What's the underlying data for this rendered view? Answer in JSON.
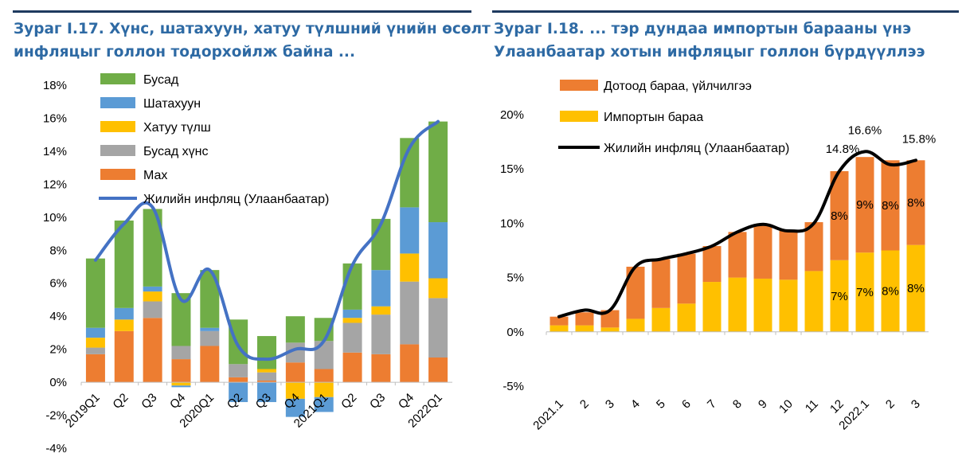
{
  "panels": [
    {
      "title_line1": "Зураг I.17. Хүнс, шатахуун, хатуу түлшний үнийн өсөлт",
      "title_line2": "инфляцыг голлон тодорхойлж байна ...",
      "legend": [
        {
          "label": "Бусад",
          "color": "#70ad47",
          "kind": "box"
        },
        {
          "label": "Шатахуун",
          "color": "#5b9bd5",
          "kind": "box"
        },
        {
          "label": "Хатуу түлш",
          "color": "#ffc000",
          "kind": "box"
        },
        {
          "label": "Бусад хүнс",
          "color": "#a5a5a5",
          "kind": "box"
        },
        {
          "label": "Мах",
          "color": "#ed7d31",
          "kind": "box"
        },
        {
          "label": "Жилийн инфляц (Улаанбаатар)",
          "color": "#4472c4",
          "kind": "line"
        }
      ]
    },
    {
      "title_line1": "Зураг I.18. ... тэр дундаа импортын барааны үнэ",
      "title_line2": "Улаанбаатар хотын инфляцыг голлон бүрдүүллээ",
      "legend": [
        {
          "label": "Дотоод бараа, үйлчилгээ",
          "color": "#ed7d31",
          "kind": "box"
        },
        {
          "label": "Импортын бараа",
          "color": "#ffc000",
          "kind": "box"
        },
        {
          "label": "Жилийн инфляц (Улаанбаатар)",
          "color": "#000000",
          "kind": "line"
        }
      ]
    }
  ],
  "chart_data": [
    {
      "type": "bar",
      "stacked": true,
      "ylim": [
        -4,
        18
      ],
      "yticks": [
        "18%",
        "16%",
        "14%",
        "12%",
        "10%",
        "8%",
        "6%",
        "4%",
        "2%",
        "0%",
        "-2%",
        "-4%"
      ],
      "categories": [
        "2019Q1",
        "Q2",
        "Q3",
        "Q4",
        "2020Q1",
        "Q2",
        "Q3",
        "Q4",
        "2021Q1",
        "Q2",
        "Q3",
        "Q4",
        "2022Q1"
      ],
      "series": [
        {
          "name": "Мах",
          "color": "#ed7d31",
          "values": [
            1.7,
            3.1,
            3.9,
            1.4,
            2.2,
            0.3,
            0.1,
            1.2,
            0.8,
            1.8,
            1.7,
            2.3,
            1.5
          ]
        },
        {
          "name": "Бусад хүнс",
          "color": "#a5a5a5",
          "values": [
            0.4,
            0,
            1.0,
            0.8,
            0.9,
            0.8,
            0.5,
            1.2,
            1.7,
            1.8,
            2.4,
            3.8,
            3.6
          ]
        },
        {
          "name": "Хатуу түлш",
          "color": "#ffc000",
          "values": [
            0.6,
            0.7,
            0.6,
            -0.2,
            0,
            0,
            0.2,
            -1.0,
            -0.9,
            0.3,
            0.5,
            1.7,
            1.2
          ]
        },
        {
          "name": "Шатахуун",
          "color": "#5b9bd5",
          "values": [
            0.6,
            0.7,
            0.3,
            -0.1,
            0.2,
            -1.2,
            -1.2,
            -1.1,
            -0.9,
            0.5,
            2.2,
            2.8,
            3.4
          ]
        },
        {
          "name": "Бусад",
          "color": "#70ad47",
          "values": [
            4.2,
            5.3,
            4.7,
            3.2,
            3.5,
            2.7,
            2.0,
            1.6,
            1.4,
            2.8,
            3.1,
            4.2,
            6.1
          ]
        }
      ],
      "line": {
        "name": "Жилийн инфляц (Улаанбаатар)",
        "color": "#4472c4",
        "values": [
          7.4,
          9.6,
          10.6,
          5.0,
          6.8,
          2.2,
          1.4,
          2.0,
          2.5,
          7.1,
          9.6,
          14.2,
          15.8
        ]
      }
    },
    {
      "type": "bar",
      "stacked": true,
      "ylim": [
        -5,
        20
      ],
      "yticks": [
        "20%",
        "15%",
        "10%",
        "5%",
        "0%",
        "-5%"
      ],
      "categories": [
        "2021.1",
        "2",
        "3",
        "4",
        "5",
        "6",
        "7",
        "8",
        "9",
        "10",
        "11",
        "12",
        "2022.1",
        "2",
        "3"
      ],
      "series": [
        {
          "name": "Импортын бараа",
          "color": "#ffc000",
          "values": [
            0.6,
            0.6,
            0.4,
            1.2,
            2.2,
            2.6,
            4.6,
            5.0,
            4.9,
            4.8,
            5.6,
            6.6,
            7.3,
            7.5,
            8.0
          ],
          "labels": [
            "",
            "",
            "",
            "",
            "",
            "",
            "",
            "",
            "",
            "",
            "",
            "7%",
            "7%",
            "8%",
            "8%"
          ]
        },
        {
          "name": "Дотоод бараа, үйлчилгээ",
          "color": "#ed7d31",
          "values": [
            0.8,
            1.2,
            1.6,
            4.8,
            4.5,
            4.6,
            3.3,
            4.2,
            5.0,
            4.5,
            4.5,
            8.2,
            8.8,
            8.3,
            7.8
          ],
          "labels": [
            "",
            "",
            "",
            "",
            "",
            "",
            "",
            "",
            "",
            "",
            "",
            "8%",
            "9%",
            "8%",
            "8%"
          ]
        }
      ],
      "line": {
        "name": "Жилийн инфляц (Улаанбаатар)",
        "color": "#000000",
        "values": [
          1.4,
          2.0,
          2.0,
          6.0,
          6.7,
          7.2,
          7.9,
          9.2,
          9.9,
          9.3,
          10.0,
          14.8,
          16.6,
          15.4,
          15.8
        ]
      },
      "line_labels": [
        {
          "index": 11,
          "text": "14.8%"
        },
        {
          "index": 12,
          "text": "16.6%"
        },
        {
          "index": 14,
          "text": "15.8%"
        }
      ]
    }
  ]
}
